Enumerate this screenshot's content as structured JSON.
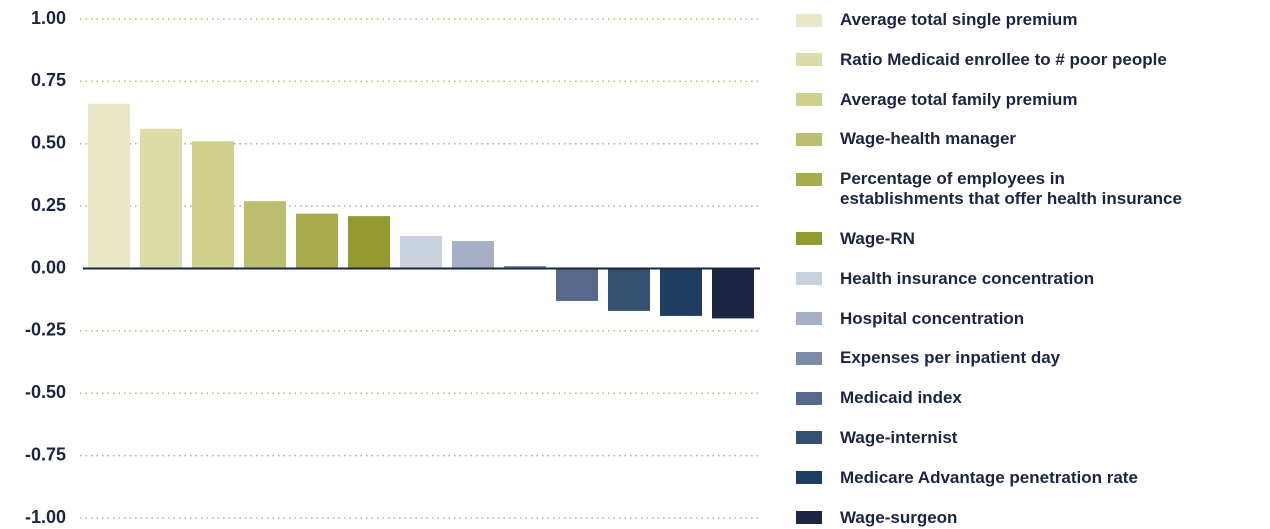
{
  "chart_data": {
    "type": "bar",
    "series": [
      {
        "name": "Average total single premium",
        "color": "#e8e8c9",
        "values": [
          0.66
        ]
      },
      {
        "name": "Ratio Medicaid enrollee to # poor people",
        "color": "#dcdca9",
        "values": [
          0.56
        ]
      },
      {
        "name": "Average total family premium",
        "color": "#cfcf8e",
        "values": [
          0.51
        ]
      },
      {
        "name": "Wage-health manager",
        "color": "#bcbd6d",
        "values": [
          0.27
        ]
      },
      {
        "name": "Percentage of employees in\nestablishments that offer health insurance",
        "color": "#a8ab4e",
        "values": [
          0.22
        ]
      },
      {
        "name": "Wage-RN",
        "color": "#959a30",
        "values": [
          0.21
        ]
      },
      {
        "name": "Health insurance concentration",
        "color": "#c9d1dd",
        "values": [
          0.13
        ]
      },
      {
        "name": "Hospital concentration",
        "color": "#a5b0c7",
        "values": [
          0.11
        ]
      },
      {
        "name": "Expenses per inpatient day",
        "color": "#7b8ca7",
        "values": [
          0.01
        ]
      },
      {
        "name": "Medicaid index",
        "color": "#56698a",
        "values": [
          -0.13
        ]
      },
      {
        "name": "Wage-internist",
        "color": "#33506f",
        "values": [
          -0.17
        ]
      },
      {
        "name": "Medicare Advantage penetration rate",
        "color": "#1f3d60",
        "values": [
          -0.19
        ]
      },
      {
        "name": "Wage-surgeon",
        "color": "#1c2541",
        "values": [
          -0.2
        ]
      }
    ],
    "ylim": [
      -1,
      1
    ],
    "yticks": [
      {
        "value": 1,
        "label": "1.00"
      },
      {
        "value": 0.75,
        "label": "0.75"
      },
      {
        "value": 0.5,
        "label": "0.50"
      },
      {
        "value": 0.25,
        "label": "0.25"
      },
      {
        "value": 0,
        "label": "0.00"
      },
      {
        "value": -0.25,
        "label": "-0.25"
      },
      {
        "value": -0.5,
        "label": "-0.50"
      },
      {
        "value": -0.75,
        "label": "-0.75"
      },
      {
        "value": -1,
        "label": "-1.00"
      }
    ],
    "grid": true
  }
}
